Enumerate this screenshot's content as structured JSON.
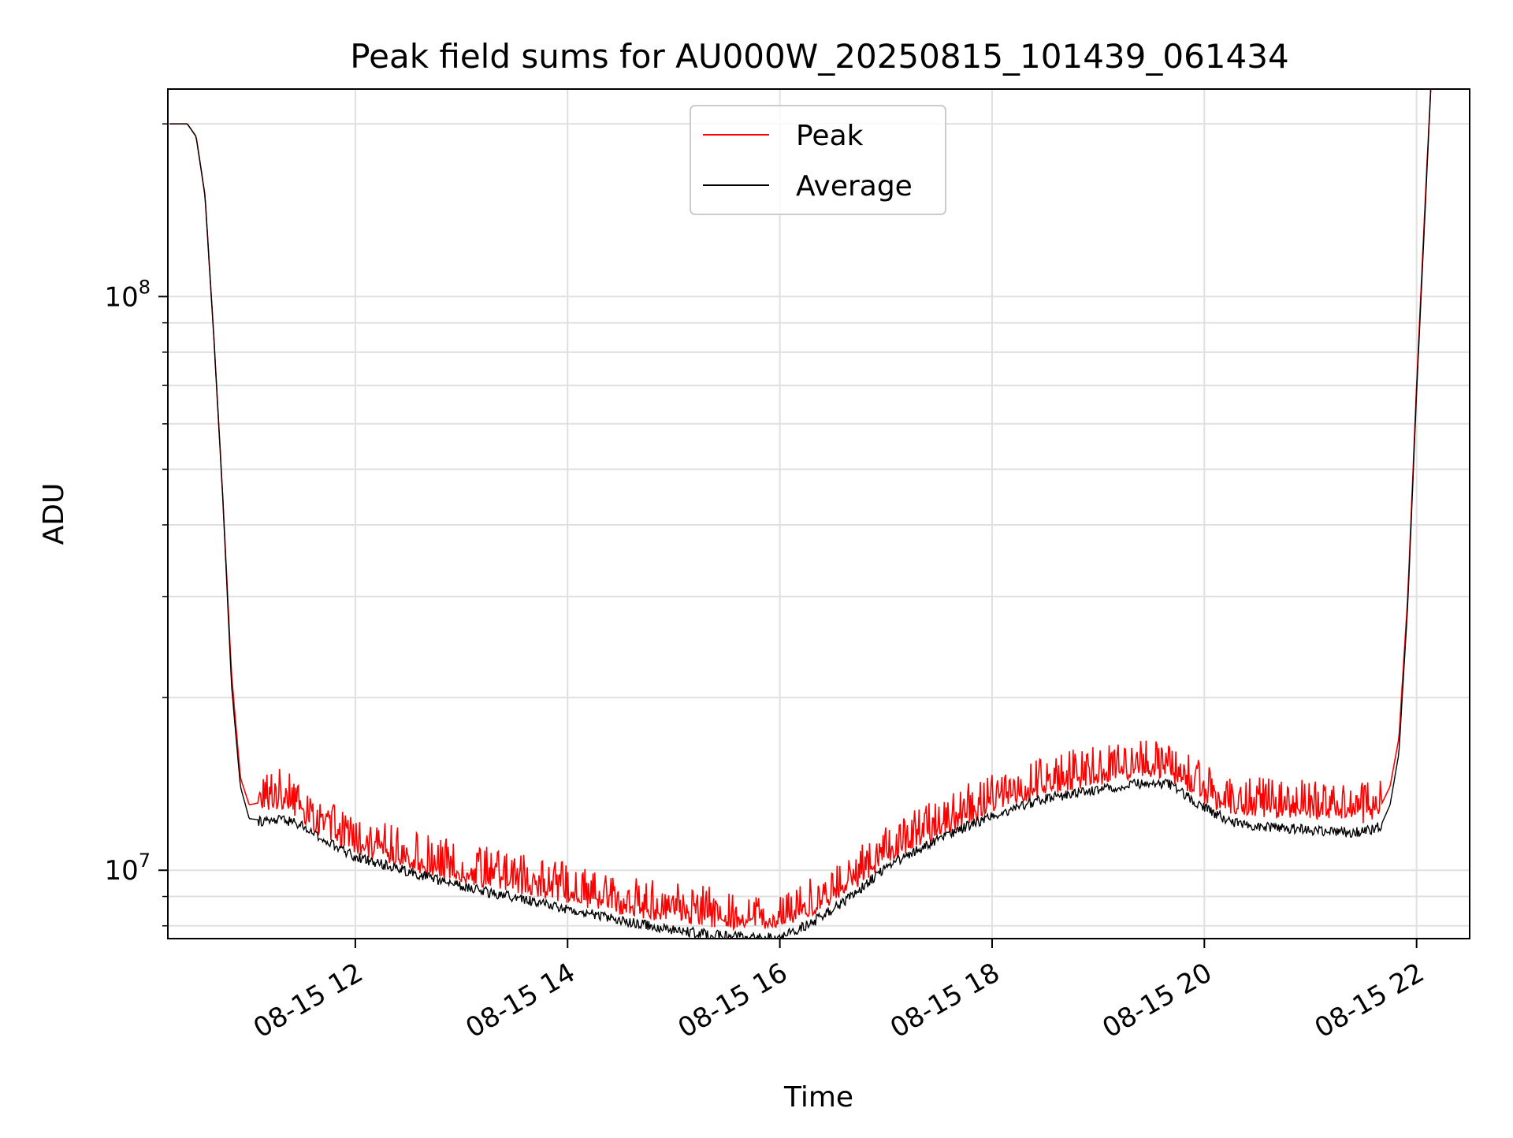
{
  "chart_data": {
    "type": "line",
    "title": "Peak field sums for AU000W_20250815_101439_061434",
    "xlabel": "Time",
    "ylabel": "ADU",
    "yscale": "log",
    "grid": true,
    "legend_placement": "upper center",
    "xlim": [
      "08-15 10:14",
      "08-15 22:30"
    ],
    "ylim": [
      7600000.0,
      230000000.0
    ],
    "x_ticks": [
      {
        "value": "08-15 12:00",
        "label": "08-15 12"
      },
      {
        "value": "08-15 14:00",
        "label": "08-15 14"
      },
      {
        "value": "08-15 16:00",
        "label": "08-15 16"
      },
      {
        "value": "08-15 18:00",
        "label": "08-15 18"
      },
      {
        "value": "08-15 20:00",
        "label": "08-15 20"
      },
      {
        "value": "08-15 22:00",
        "label": "08-15 22"
      }
    ],
    "y_ticks": [
      {
        "value": 10000000,
        "label": "10",
        "exp": "7"
      },
      {
        "value": 100000000,
        "label": "10",
        "exp": "8"
      }
    ],
    "series": [
      {
        "name": "Peak",
        "color": "#ff0000",
        "x": [
          "08-15 10:15",
          "08-15 10:25",
          "08-15 10:30",
          "08-15 10:35",
          "08-15 10:40",
          "08-15 10:45",
          "08-15 10:50",
          "08-15 10:55",
          "08-15 11:00",
          "08-15 11:10",
          "08-15 11:20",
          "08-15 11:30",
          "08-15 11:40",
          "08-15 12:00",
          "08-15 12:30",
          "08-15 13:00",
          "08-15 13:30",
          "08-15 14:00",
          "08-15 14:30",
          "08-15 15:00",
          "08-15 15:30",
          "08-15 16:00",
          "08-15 16:20",
          "08-15 16:40",
          "08-15 17:00",
          "08-15 17:30",
          "08-15 18:00",
          "08-15 18:30",
          "08-15 19:00",
          "08-15 19:30",
          "08-15 19:40",
          "08-15 20:00",
          "08-15 20:15",
          "08-15 20:30",
          "08-15 21:00",
          "08-15 21:20",
          "08-15 21:30",
          "08-15 21:40",
          "08-15 21:45",
          "08-15 21:50",
          "08-15 21:55",
          "08-15 22:00",
          "08-15 22:05",
          "08-15 22:08"
        ],
        "values": [
          200000000,
          200000000,
          190000000,
          150000000,
          85000000,
          45000000,
          22000000,
          14500000,
          13000000,
          13200000,
          13500000,
          12800000,
          12000000,
          11200000,
          10500000,
          10000000,
          9600000,
          9200000,
          8800000,
          8500000,
          8300000,
          8300000,
          8800000,
          9600000,
          10800000,
          12000000,
          13200000,
          14200000,
          14800000,
          15200000,
          15000000,
          13700000,
          13100000,
          13000000,
          12900000,
          12800000,
          12700000,
          13000000,
          14000000,
          17000000,
          30000000,
          70000000,
          150000000,
          230000000
        ]
      },
      {
        "name": "Average",
        "color": "#000000",
        "x": [
          "08-15 10:15",
          "08-15 10:25",
          "08-15 10:30",
          "08-15 10:35",
          "08-15 10:40",
          "08-15 10:45",
          "08-15 10:50",
          "08-15 10:55",
          "08-15 11:00",
          "08-15 11:10",
          "08-15 11:20",
          "08-15 11:30",
          "08-15 11:40",
          "08-15 12:00",
          "08-15 12:30",
          "08-15 13:00",
          "08-15 13:30",
          "08-15 14:00",
          "08-15 14:30",
          "08-15 15:00",
          "08-15 15:30",
          "08-15 16:00",
          "08-15 16:20",
          "08-15 16:40",
          "08-15 17:00",
          "08-15 17:30",
          "08-15 18:00",
          "08-15 18:30",
          "08-15 19:00",
          "08-15 19:30",
          "08-15 19:40",
          "08-15 20:00",
          "08-15 20:15",
          "08-15 20:30",
          "08-15 21:00",
          "08-15 21:20",
          "08-15 21:30",
          "08-15 21:40",
          "08-15 21:45",
          "08-15 21:50",
          "08-15 21:55",
          "08-15 22:00",
          "08-15 22:05",
          "08-15 22:08"
        ],
        "values": [
          200000000,
          200000000,
          190000000,
          150000000,
          85000000,
          45000000,
          21000000,
          14000000,
          12300000,
          12200000,
          12300000,
          12000000,
          11400000,
          10600000,
          10000000,
          9400000,
          9000000,
          8600000,
          8200000,
          7900000,
          7700000,
          7650000,
          8200000,
          9000000,
          10200000,
          11400000,
          12500000,
          13400000,
          13900000,
          14300000,
          14200000,
          12900000,
          12200000,
          12000000,
          11800000,
          11700000,
          11700000,
          12000000,
          13000000,
          16000000,
          29000000,
          68000000,
          145000000,
          230000000
        ]
      }
    ]
  }
}
